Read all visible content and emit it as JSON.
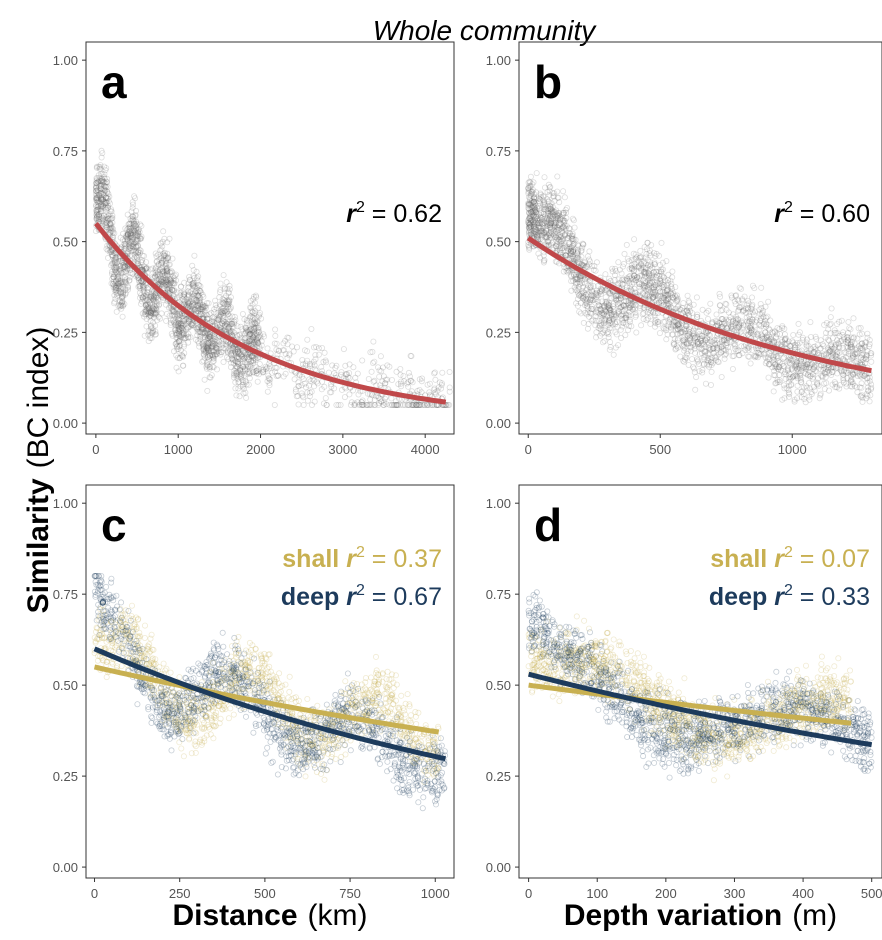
{
  "figure": {
    "title": "Whole community",
    "ylabel_bold": "Similarity",
    "ylabel_rest": "(BC index)",
    "colors": {
      "all": "#666666",
      "fit_all": "#c0484a",
      "shall": "#c8b051",
      "deep": "#1d3b5c"
    }
  },
  "chart_data": [
    {
      "panel": "a",
      "type": "scatter",
      "xlabel_bold": "",
      "xlabel_unit": "",
      "xticks": [
        0,
        1000,
        2000,
        3000,
        4000
      ],
      "xlim": [
        -120,
        4350
      ],
      "yticks": [
        "0.00",
        "0.25",
        "0.50",
        "0.75",
        "1.00"
      ],
      "ylim": [
        -0.03,
        1.05
      ],
      "annotations": [
        {
          "label": "",
          "r2_sym": "r",
          "r2_sup": "2",
          "r2_text": " = 0.62",
          "color": "#000000"
        }
      ],
      "series": [
        {
          "color": "#666666",
          "points_desc": "dense clusters 0-2000 decreasing from ~0.65 to ~0.2, sparse scatter 2000-4300 around 0.1-0.4",
          "fit": {
            "type": "exp",
            "a": 0.55,
            "b": -0.00053,
            "x": [
              0,
              4250
            ]
          }
        }
      ]
    },
    {
      "panel": "b",
      "type": "scatter",
      "xlabel_bold": "",
      "xlabel_unit": "",
      "xticks": [
        0,
        500,
        1000
      ],
      "xlim": [
        -35,
        1340
      ],
      "yticks": [
        "0.00",
        "0.25",
        "0.50",
        "0.75",
        "1.00"
      ],
      "ylim": [
        -0.03,
        1.05
      ],
      "annotations": [
        {
          "label": "",
          "r2_sym": "r",
          "r2_sup": "2",
          "r2_text": " = 0.60",
          "color": "#000000"
        }
      ],
      "series": [
        {
          "color": "#666666",
          "fit": {
            "type": "exp",
            "a": 0.51,
            "b": -0.00097,
            "x": [
              0,
              1300
            ]
          }
        }
      ]
    },
    {
      "panel": "c",
      "type": "scatter",
      "xlabel_bold": "Distance",
      "xlabel_unit": "(km)",
      "xticks": [
        0,
        250,
        500,
        750,
        1000
      ],
      "xlim": [
        -25,
        1055
      ],
      "yticks": [
        "0.00",
        "0.25",
        "0.50",
        "0.75",
        "1.00"
      ],
      "ylim": [
        -0.03,
        1.05
      ],
      "annotations": [
        {
          "label": "shall",
          "r2_sym": "r",
          "r2_sup": "2",
          "r2_text": " = 0.37",
          "color": "#c8b051"
        },
        {
          "label": "deep",
          "r2_sym": "r",
          "r2_sup": "2",
          "r2_text": " = 0.67",
          "color": "#1d3b5c"
        }
      ],
      "series": [
        {
          "name": "shall",
          "color": "#c8b051",
          "fit": {
            "type": "exp",
            "a": 0.55,
            "b": -0.00039,
            "x": [
              0,
              1010
            ]
          }
        },
        {
          "name": "deep",
          "color": "#1d3b5c",
          "fit": {
            "type": "exp",
            "a": 0.6,
            "b": -0.00068,
            "x": [
              0,
              1030
            ]
          }
        }
      ]
    },
    {
      "panel": "d",
      "type": "scatter",
      "xlabel_bold": "Depth variation",
      "xlabel_unit": "(m)",
      "xticks": [
        0,
        100,
        200,
        300,
        400,
        500
      ],
      "xlim": [
        -14,
        515
      ],
      "yticks": [
        "0.00",
        "0.25",
        "0.50",
        "0.75",
        "1.00"
      ],
      "ylim": [
        -0.03,
        1.05
      ],
      "annotations": [
        {
          "label": "shall",
          "r2_sym": "r",
          "r2_sup": "2",
          "r2_text": " = 0.07",
          "color": "#c8b051"
        },
        {
          "label": "deep",
          "r2_sym": "r",
          "r2_sup": "2",
          "r2_text": " = 0.33",
          "color": "#1d3b5c"
        }
      ],
      "series": [
        {
          "name": "shall",
          "color": "#c8b051",
          "fit": {
            "type": "exp",
            "a": 0.5,
            "b": -0.0005,
            "x": [
              0,
              470
            ]
          }
        },
        {
          "name": "deep",
          "color": "#1d3b5c",
          "fit": {
            "type": "exp",
            "a": 0.53,
            "b": -0.00091,
            "x": [
              0,
              500
            ]
          }
        }
      ]
    }
  ]
}
